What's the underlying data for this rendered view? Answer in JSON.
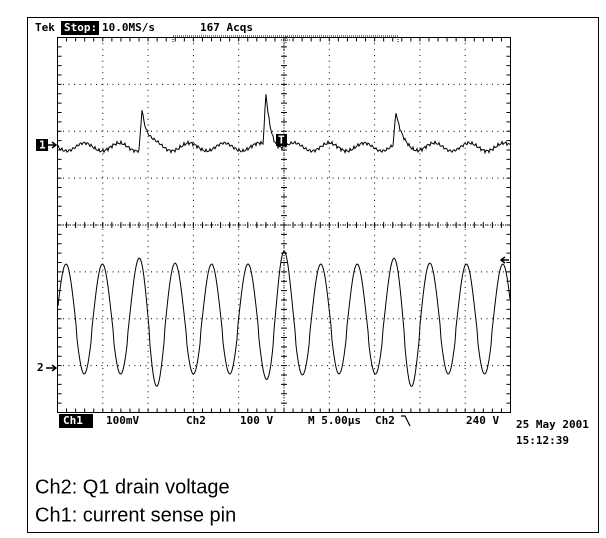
{
  "header": {
    "brand": "Tek",
    "state": "Stop:",
    "sample_rate": "10.0MS/s",
    "acquisitions": "167 Acqs"
  },
  "status": {
    "ch1": "Ch1",
    "ch1_scale": "100mV",
    "ch2": "Ch2",
    "ch2_scale": "100 V",
    "timebase": "M 5.00µs",
    "trigger_source": "Ch2",
    "trigger_level": "240 V"
  },
  "timestamp": {
    "date": "25 May 2001",
    "time": "15:12:39"
  },
  "markers": {
    "ch1": "1",
    "ch2": "2",
    "trigger": "T"
  },
  "caption": [
    "Ch2: Q1 drain voltage",
    "Ch1: current sense pin"
  ]
}
